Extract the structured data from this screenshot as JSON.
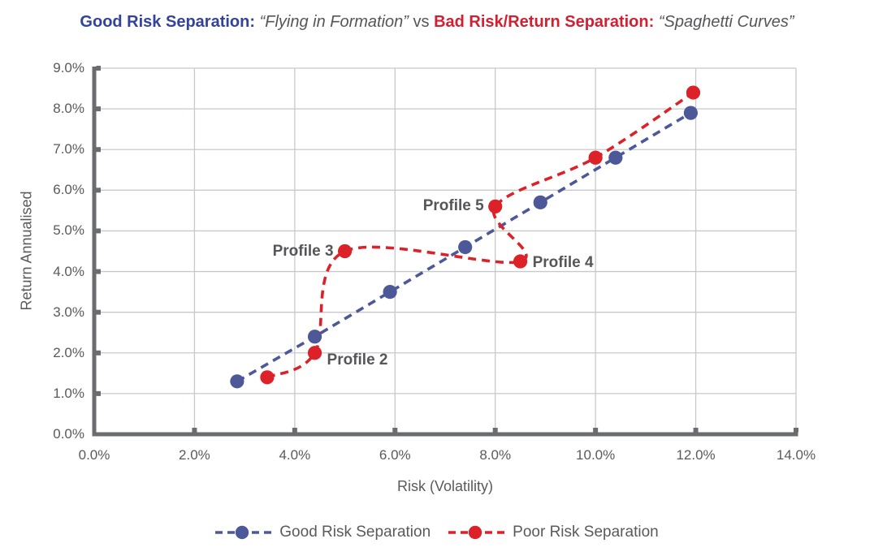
{
  "title": {
    "part1": "Good Risk Separation:",
    "part2": "“Flying in Formation”",
    "part3": "vs",
    "part4": "Bad Risk/Return Separation:",
    "part5": "“Spaghetti Curves”"
  },
  "colors": {
    "good_series": "#4D5899",
    "poor_series": "#DC2128",
    "title_good": "#33439B",
    "title_bad": "#D02032",
    "text_gray": "#595A5C",
    "axis": "#6A6C6F",
    "gridline": "#C8C9CB"
  },
  "chart_data": {
    "type": "line",
    "title": "Good Risk Separation: “Flying in Formation” vs Bad Risk/Return Separation: “Spaghetti Curves”",
    "xlabel": "Risk (Volatility)",
    "ylabel": "Return Annualised",
    "xlim": [
      0,
      14
    ],
    "ylim": [
      0,
      9
    ],
    "x_ticks": [
      "0.0%",
      "2.0%",
      "4.0%",
      "6.0%",
      "8.0%",
      "10.0%",
      "12.0%",
      "14.0%"
    ],
    "y_ticks": [
      "0.0%",
      "1.0%",
      "2.0%",
      "3.0%",
      "4.0%",
      "5.0%",
      "6.0%",
      "7.0%",
      "8.0%",
      "9.0%"
    ],
    "grid": true,
    "legend_position": "bottom",
    "series": [
      {
        "name": "Good Risk Separation",
        "color": "#4D5899",
        "smooth": false,
        "points": [
          [
            2.85,
            1.3
          ],
          [
            4.4,
            2.4
          ],
          [
            5.9,
            3.5
          ],
          [
            7.4,
            4.6
          ],
          [
            8.9,
            5.7
          ],
          [
            10.4,
            6.8
          ],
          [
            11.9,
            7.9
          ]
        ]
      },
      {
        "name": "Poor Risk Separation",
        "color": "#DC2128",
        "smooth": true,
        "points": [
          [
            3.45,
            1.4
          ],
          [
            4.4,
            2.0
          ],
          [
            5.0,
            4.5
          ],
          [
            8.5,
            4.25
          ],
          [
            8.0,
            5.6
          ],
          [
            10.0,
            6.8
          ],
          [
            11.95,
            8.4
          ]
        ]
      }
    ],
    "annotations": [
      {
        "label": "Profile 2",
        "x": 4.4,
        "y": 2.0,
        "side": "right",
        "dy": 9
      },
      {
        "label": "Profile 3",
        "x": 5.0,
        "y": 4.5,
        "side": "left",
        "dy": 0
      },
      {
        "label": "Profile 4",
        "x": 8.5,
        "y": 4.25,
        "side": "right",
        "dy": 2
      },
      {
        "label": "Profile 5",
        "x": 8.0,
        "y": 5.6,
        "side": "left",
        "dy": 0
      }
    ],
    "legend": [
      "Good Risk Separation",
      "Poor Risk Separation"
    ]
  }
}
